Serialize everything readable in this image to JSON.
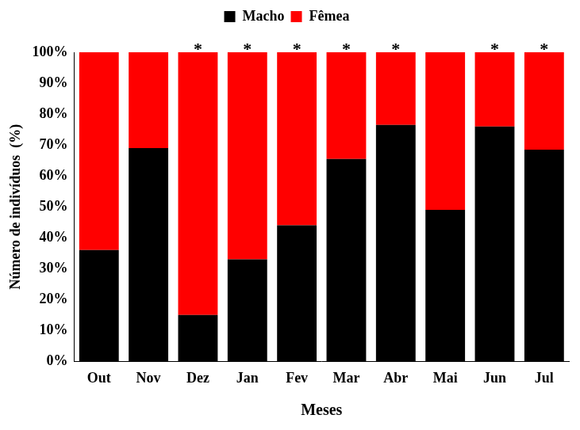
{
  "chart_data": {
    "type": "bar",
    "stacked": true,
    "x_label": "Meses",
    "y_label": "Número de indivíduos  (%)",
    "categories": [
      "Out",
      "Nov",
      "Dez",
      "Jan",
      "Fev",
      "Mar",
      "Abr",
      "Mai",
      "Jun",
      "Jul"
    ],
    "series": [
      {
        "name": "Macho",
        "color": "#000000",
        "values": [
          36,
          69,
          15,
          33,
          44,
          65.5,
          76.5,
          49,
          76,
          68.5
        ]
      },
      {
        "name": "Fêmea",
        "color": "#ff0000",
        "values": [
          64,
          31,
          85,
          67,
          56,
          34.5,
          23.5,
          51,
          24,
          31.5
        ]
      }
    ],
    "ylim": [
      0,
      100
    ],
    "yticks": [
      {
        "value": 0,
        "label": "0%"
      },
      {
        "value": 10,
        "label": "10%"
      },
      {
        "value": 20,
        "label": "20%"
      },
      {
        "value": 30,
        "label": "30%"
      },
      {
        "value": 40,
        "label": "40%"
      },
      {
        "value": 50,
        "label": "50%"
      },
      {
        "value": 60,
        "label": "60%"
      },
      {
        "value": 70,
        "label": "70%"
      },
      {
        "value": 80,
        "label": "80%"
      },
      {
        "value": 90,
        "label": "90%"
      },
      {
        "value": 100,
        "label": "100%"
      }
    ],
    "grid": false,
    "legend": "top",
    "annotations": [
      {
        "text": "*",
        "x": "Dez"
      },
      {
        "text": "*",
        "x": "Jan"
      },
      {
        "text": "*",
        "x": "Fev"
      },
      {
        "text": "*",
        "x": "Mar"
      },
      {
        "text": "*",
        "x": "Abr"
      },
      {
        "text": "*",
        "x": "Jun"
      },
      {
        "text": "*",
        "x": "Jul"
      }
    ]
  }
}
